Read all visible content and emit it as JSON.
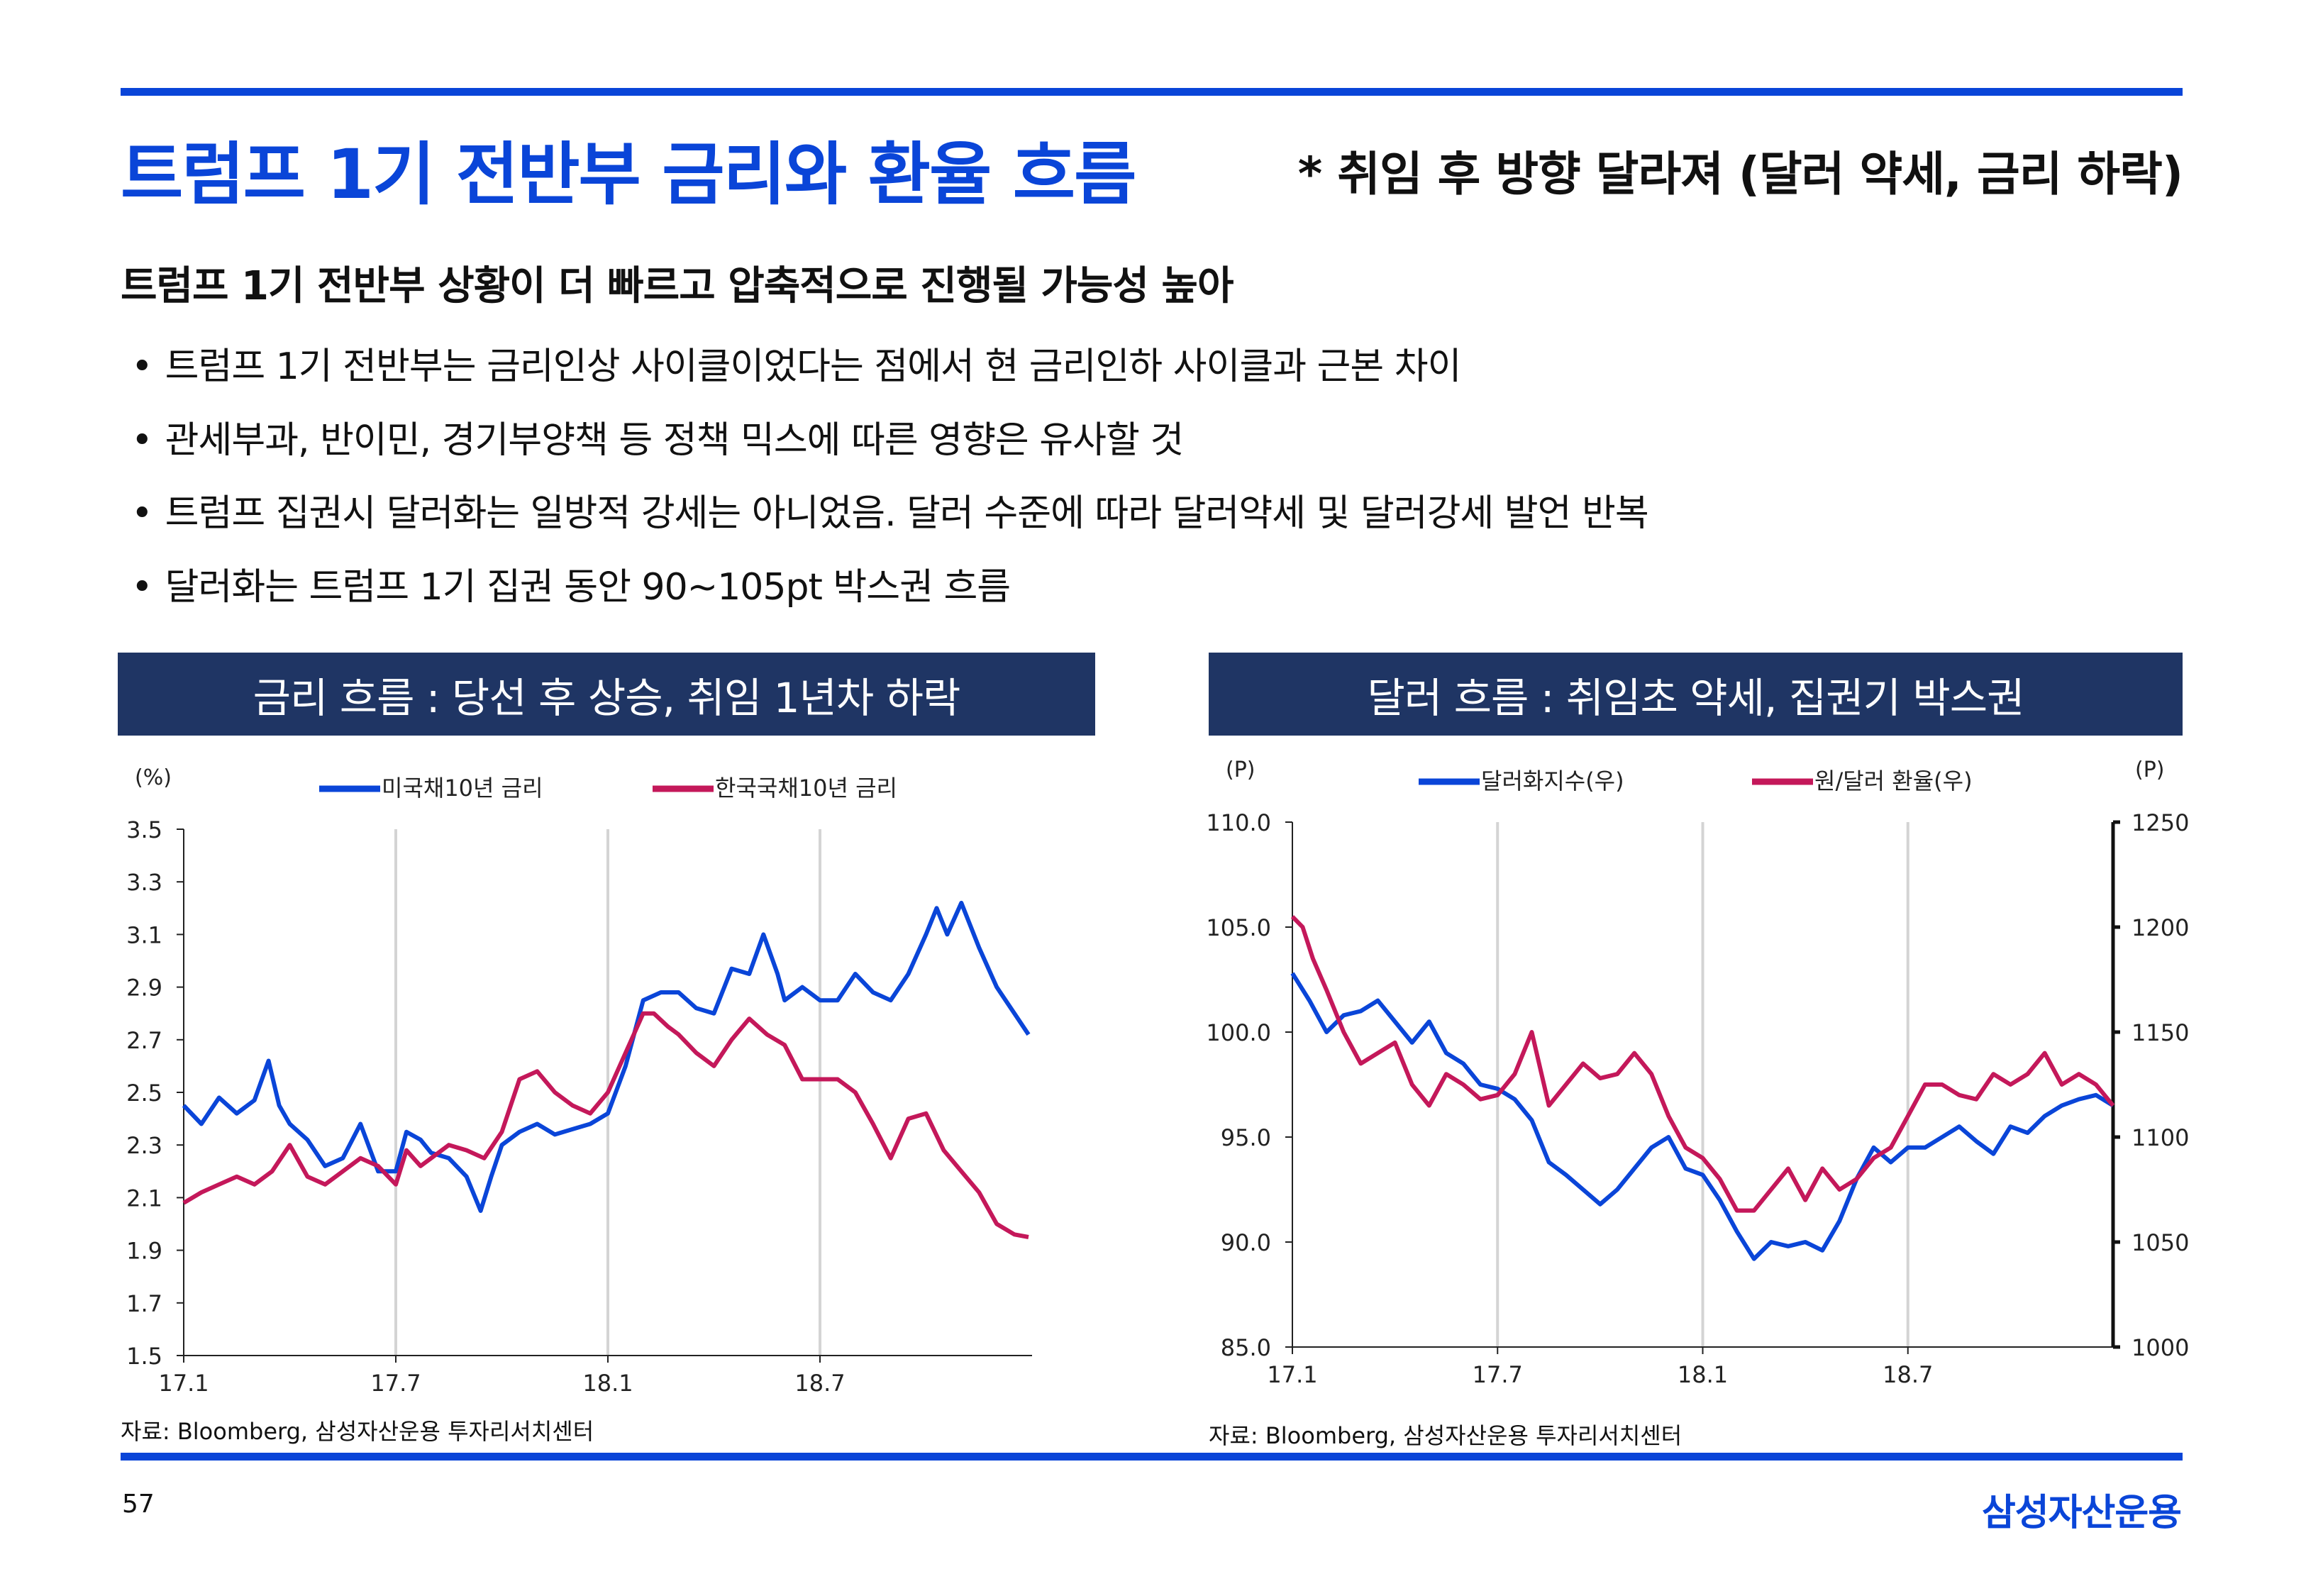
{
  "header": {
    "title": "트럼프 1기 전반부 금리와 환율 흐름",
    "subtitle": "* 취임 후 방향 달라져 (달러 약세, 금리 하락)"
  },
  "summary": {
    "heading": "트럼프 1기 전반부 상황이 더 빠르고 압축적으로 진행될 가능성 높아",
    "bullets": [
      "트럼프 1기 전반부는 금리인상 사이클이었다는 점에서 현 금리인하 사이클과 근본 차이",
      "관세부과, 반이민, 경기부양책 등 정책 믹스에 따른 영향은 유사할 것",
      "트럼프 집권시 달러화는 일방적 강세는 아니었음. 달러 수준에 따라 달러약세 및 달러강세 발언 반복",
      "달러화는 트럼프 1기 집권 동안 90~105pt 박스권 흐름"
    ]
  },
  "footer": {
    "page_number": "57",
    "logo_text": "삼성자산운용"
  },
  "colors": {
    "accent": "#0a45d8",
    "navy": "#1f3564",
    "series_blue": "#0a45d8",
    "series_red": "#c4185a"
  },
  "chart_data": [
    {
      "type": "line",
      "title": "금리 흐름 : 당선 후 상승, 취임 1년차 하락",
      "ylabel": "(%)",
      "ylim": [
        1.5,
        3.5
      ],
      "yticks": [
        "3.5",
        "3.3",
        "3.1",
        "2.9",
        "2.7",
        "2.5",
        "2.3",
        "2.1",
        "1.9",
        "1.7",
        "1.5"
      ],
      "xticks": [
        "17.1",
        "17.7",
        "18.1",
        "18.7"
      ],
      "x_unit": "months since 2017-01",
      "xlim": [
        0,
        24
      ],
      "legend": "top-center",
      "source": "자료: Bloomberg, 삼성자산운용 투자리서치센터",
      "series": [
        {
          "name": "미국채10년 금리",
          "color": "#0a45d8",
          "x": [
            0,
            0.5,
            1,
            1.5,
            2,
            2.4,
            2.7,
            3,
            3.5,
            4,
            4.5,
            5,
            5.5,
            6,
            6.3,
            6.7,
            7,
            7.5,
            8,
            8.4,
            8.7,
            9,
            9.5,
            10,
            10.5,
            11,
            11.5,
            12,
            12.5,
            13,
            13.5,
            14,
            14.5,
            15,
            15.5,
            16,
            16.4,
            16.8,
            17,
            17.5,
            18,
            18.5,
            19,
            19.5,
            20,
            20.5,
            21,
            21.3,
            21.6,
            22,
            22.5,
            23,
            23.5,
            23.9
          ],
          "values": [
            2.45,
            2.38,
            2.48,
            2.42,
            2.47,
            2.62,
            2.45,
            2.38,
            2.32,
            2.22,
            2.25,
            2.38,
            2.2,
            2.2,
            2.35,
            2.32,
            2.27,
            2.25,
            2.18,
            2.05,
            2.18,
            2.3,
            2.35,
            2.38,
            2.34,
            2.36,
            2.38,
            2.42,
            2.6,
            2.85,
            2.88,
            2.88,
            2.82,
            2.8,
            2.97,
            2.95,
            3.1,
            2.95,
            2.85,
            2.9,
            2.85,
            2.85,
            2.95,
            2.88,
            2.85,
            2.95,
            3.1,
            3.2,
            3.1,
            3.22,
            3.05,
            2.9,
            2.8,
            2.72
          ]
        },
        {
          "name": "한국국채10년 금리",
          "color": "#c4185a",
          "x": [
            0,
            0.5,
            1,
            1.5,
            2,
            2.5,
            3,
            3.5,
            4,
            4.5,
            5,
            5.5,
            6,
            6.3,
            6.7,
            7,
            7.5,
            8,
            8.5,
            9,
            9.5,
            10,
            10.5,
            11,
            11.5,
            12,
            12.5,
            13,
            13.3,
            13.7,
            14,
            14.5,
            15,
            15.5,
            16,
            16.5,
            17,
            17.5,
            18,
            18.5,
            19,
            19.5,
            20,
            20.5,
            21,
            21.5,
            22,
            22.5,
            23,
            23.5,
            23.9
          ],
          "values": [
            2.08,
            2.12,
            2.15,
            2.18,
            2.15,
            2.2,
            2.3,
            2.18,
            2.15,
            2.2,
            2.25,
            2.22,
            2.15,
            2.28,
            2.22,
            2.25,
            2.3,
            2.28,
            2.25,
            2.35,
            2.55,
            2.58,
            2.5,
            2.45,
            2.42,
            2.5,
            2.65,
            2.8,
            2.8,
            2.75,
            2.72,
            2.65,
            2.6,
            2.7,
            2.78,
            2.72,
            2.68,
            2.55,
            2.55,
            2.55,
            2.5,
            2.38,
            2.25,
            2.4,
            2.42,
            2.28,
            2.2,
            2.12,
            2.0,
            1.96,
            1.95
          ]
        }
      ]
    },
    {
      "type": "line",
      "title": "달러 흐름 : 취임초 약세, 집권기 박스권",
      "ylabel": "(P)",
      "ylabel_right": "(P)",
      "ylim": [
        85,
        110
      ],
      "ylim_right": [
        1000,
        1250
      ],
      "yticks": [
        "110.0",
        "105.0",
        "100.0",
        "95.0",
        "90.0",
        "85.0"
      ],
      "yticks_right": [
        "1250",
        "1200",
        "1150",
        "1100",
        "1050",
        "1000"
      ],
      "xticks": [
        "17.1",
        "17.7",
        "18.1",
        "18.7"
      ],
      "x_unit": "months since 2017-01",
      "xlim": [
        0,
        24
      ],
      "legend": "top-center",
      "source": "자료: Bloomberg, 삼성자산운용 투자리서치센터",
      "series": [
        {
          "name": "달러화지수(우)",
          "color": "#0a45d8",
          "axis": "left",
          "x": [
            0,
            0.5,
            1,
            1.5,
            2,
            2.5,
            3,
            3.5,
            4,
            4.5,
            5,
            5.5,
            6,
            6.5,
            7,
            7.5,
            8,
            8.5,
            9,
            9.5,
            10,
            10.5,
            11,
            11.5,
            12,
            12.5,
            13,
            13.5,
            14,
            14.5,
            15,
            15.5,
            16,
            16.5,
            17,
            17.5,
            18,
            18.5,
            19,
            19.5,
            20,
            20.5,
            21,
            21.5,
            22,
            22.5,
            23,
            23.5,
            24
          ],
          "values": [
            102.8,
            101.5,
            100,
            100.8,
            101,
            101.5,
            100.5,
            99.5,
            100.5,
            99,
            98.5,
            97.5,
            97.3,
            96.8,
            95.8,
            93.8,
            93.2,
            92.5,
            91.8,
            92.5,
            93.5,
            94.5,
            95,
            93.5,
            93.2,
            92,
            90.5,
            89.2,
            90,
            89.8,
            90,
            89.6,
            91,
            93,
            94.5,
            93.8,
            94.5,
            94.5,
            95,
            95.5,
            94.8,
            94.2,
            95.5,
            95.2,
            96,
            96.5,
            96.8,
            97,
            96.5
          ]
        },
        {
          "name": "원/달러 환율(우)",
          "color": "#c4185a",
          "axis": "right",
          "x": [
            0,
            0.3,
            0.6,
            1,
            1.5,
            2,
            2.5,
            3,
            3.5,
            4,
            4.5,
            5,
            5.5,
            6,
            6.5,
            7,
            7.5,
            8,
            8.5,
            9,
            9.5,
            10,
            10.5,
            11,
            11.5,
            12,
            12.5,
            13,
            13.5,
            14,
            14.5,
            15,
            15.5,
            16,
            16.5,
            17,
            17.5,
            18,
            18.5,
            19,
            19.5,
            20,
            20.5,
            21,
            21.5,
            22,
            22.5,
            23,
            23.5,
            24
          ],
          "values": [
            1205,
            1200,
            1185,
            1170,
            1150,
            1135,
            1140,
            1145,
            1125,
            1115,
            1130,
            1125,
            1118,
            1120,
            1130,
            1150,
            1115,
            1125,
            1135,
            1128,
            1130,
            1140,
            1130,
            1110,
            1095,
            1090,
            1080,
            1065,
            1065,
            1075,
            1085,
            1070,
            1085,
            1075,
            1080,
            1090,
            1095,
            1110,
            1125,
            1125,
            1120,
            1118,
            1130,
            1125,
            1130,
            1140,
            1125,
            1130,
            1125,
            1115
          ]
        }
      ]
    }
  ]
}
